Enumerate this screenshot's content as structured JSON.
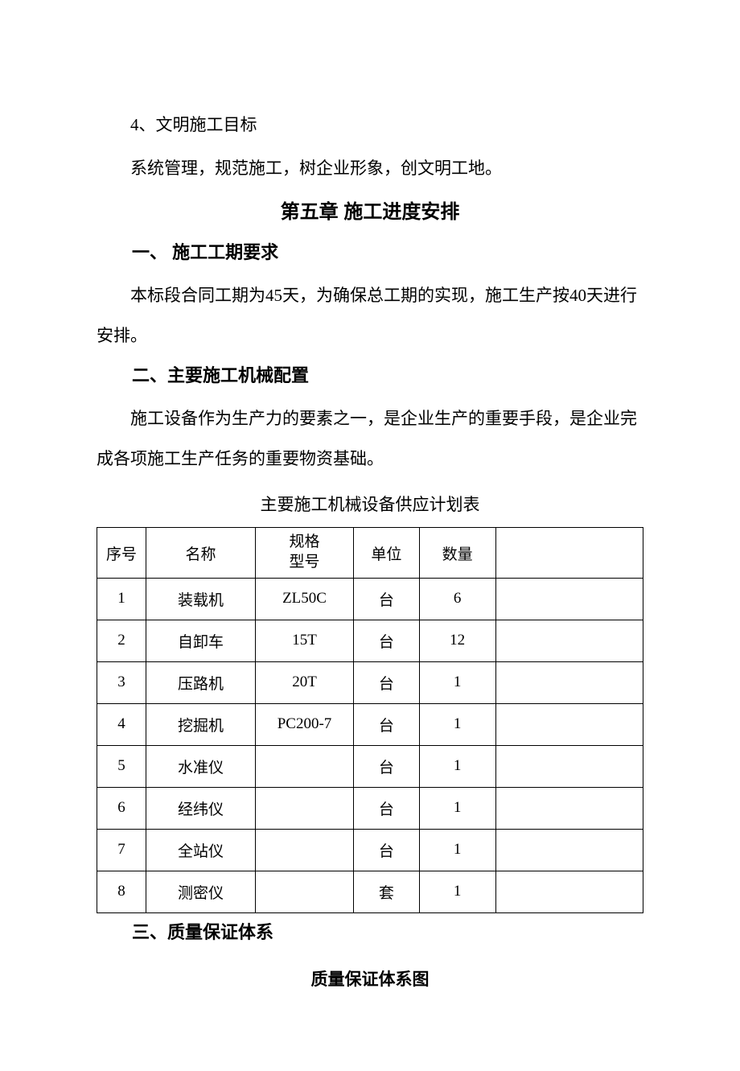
{
  "p1": "4、文明施工目标",
  "p2": "系统管理，规范施工，树企业形象，创文明工地。",
  "chapter_title": "第五章 施工进度安排",
  "section1_title": "一、 施工工期要求",
  "p3": "本标段合同工期为45天，为确保总工期的实现，施工生产按40天进行安排。",
  "section2_title": "二、主要施工机械配置",
  "p4": "施工设备作为生产力的要素之一，是企业生产的重要手段，是企业完成各项施工生产任务的重要物资基础。",
  "table_title": "主要施工机械设备供应计划表",
  "table": {
    "headers": {
      "seq": "序号",
      "name": "名称",
      "spec_line1": "规格",
      "spec_line2": "型号",
      "unit": "单位",
      "qty": "数量",
      "blank": ""
    },
    "rows": [
      {
        "seq": "1",
        "name": "装载机",
        "spec": "ZL50C",
        "unit": "台",
        "qty": "6",
        "blank": ""
      },
      {
        "seq": "2",
        "name": "自卸车",
        "spec": "15T",
        "unit": "台",
        "qty": "12",
        "blank": ""
      },
      {
        "seq": "3",
        "name": "压路机",
        "spec": "20T",
        "unit": "台",
        "qty": "1",
        "blank": ""
      },
      {
        "seq": "4",
        "name": "挖掘机",
        "spec": "PC200-7",
        "unit": "台",
        "qty": "1",
        "blank": ""
      },
      {
        "seq": "5",
        "name": "水准仪",
        "spec": "",
        "unit": "台",
        "qty": "1",
        "blank": ""
      },
      {
        "seq": "6",
        "name": "经纬仪",
        "spec": "",
        "unit": "台",
        "qty": "1",
        "blank": ""
      },
      {
        "seq": "7",
        "name": "全站仪",
        "spec": "",
        "unit": "台",
        "qty": "1",
        "blank": ""
      },
      {
        "seq": "8",
        "name": "测密仪",
        "spec": "",
        "unit": "套",
        "qty": "1",
        "blank": ""
      }
    ]
  },
  "section3_title": "三、质量保证体系",
  "subsection_title": "质量保证体系图"
}
